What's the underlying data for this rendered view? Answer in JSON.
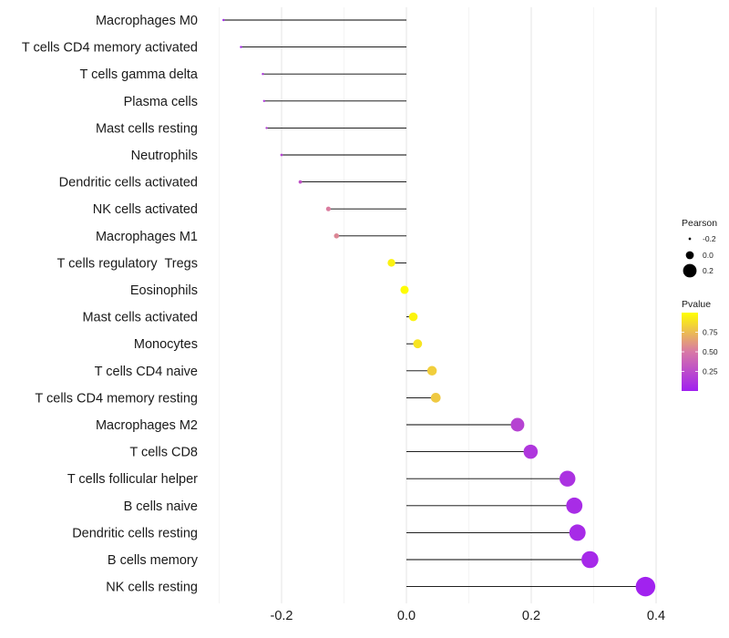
{
  "chart_data": {
    "type": "lollipop",
    "title": "",
    "xlabel": "",
    "ylabel": "",
    "xlim": [
      -0.3,
      0.4
    ],
    "x_ticks": [
      -0.2,
      0.0,
      0.2,
      0.4
    ],
    "x_tick_labels": [
      "-0.2",
      "0.0",
      "0.2",
      "0.4"
    ],
    "grid": true,
    "categories": [
      "Macrophages M0",
      "T cells CD4 memory activated",
      "T cells gamma delta",
      "Plasma cells",
      "Mast cells resting",
      "Neutrophils",
      "Dendritic cells activated",
      "NK cells activated",
      "Macrophages M1",
      "T cells regulatory  Tregs",
      "Eosinophils",
      "Mast cells activated",
      "Monocytes",
      "T cells CD4 naive",
      "T cells CD4 memory resting",
      "Macrophages M2",
      "T cells CD8",
      "T cells follicular helper",
      "B cells naive",
      "Dendritic cells resting",
      "B cells memory",
      "NK cells resting"
    ],
    "values": [
      -0.293,
      -0.265,
      -0.23,
      -0.228,
      -0.224,
      -0.2,
      -0.17,
      -0.125,
      -0.112,
      -0.024,
      -0.003,
      0.011,
      0.018,
      0.041,
      0.047,
      0.178,
      0.199,
      0.258,
      0.269,
      0.274,
      0.294,
      0.383
    ],
    "pvalues": [
      0.03,
      0.04,
      0.12,
      0.14,
      0.18,
      0.2,
      0.28,
      0.52,
      0.55,
      0.95,
      0.99,
      0.96,
      0.9,
      0.82,
      0.8,
      0.2,
      0.13,
      0.1,
      0.07,
      0.06,
      0.05,
      0.01
    ],
    "legend": {
      "size_title": "Pearson",
      "size_labels": [
        "-0.2",
        "0.0",
        "0.2"
      ],
      "size_values": [
        -0.2,
        0.0,
        0.2
      ],
      "color_title": "Pvalue",
      "color_labels": [
        "0.75",
        "0.50",
        "0.25"
      ],
      "color_values": [
        0.75,
        0.5,
        0.25
      ],
      "color_low": "#a020f0",
      "color_mid": "#d878a6",
      "color_high": "#ffff00",
      "placement": "right"
    }
  }
}
